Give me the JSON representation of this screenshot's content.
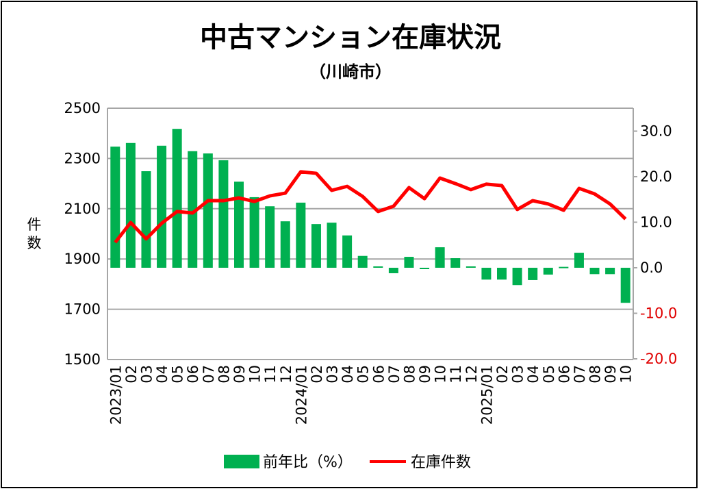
{
  "chart_data": {
    "type": "bar+line",
    "title": "中古マンション在庫状況",
    "subtitle": "（川崎市）",
    "ylabel_left": "件数",
    "ylim_left": [
      1500,
      2500
    ],
    "yticks_left": [
      "1500",
      "1700",
      "1900",
      "2100",
      "2300",
      "2500"
    ],
    "ylim_right": [
      -20,
      35
    ],
    "yticks_right": [
      "-20.0",
      "-10.0",
      "0.0",
      "10.0",
      "20.0",
      "30.0"
    ],
    "right_negative_color": "#e00000",
    "grid": true,
    "legend_position": "bottom",
    "categories": [
      "2023/01",
      "02",
      "03",
      "04",
      "05",
      "06",
      "07",
      "08",
      "09",
      "10",
      "11",
      "12",
      "2024/01",
      "02",
      "03",
      "04",
      "05",
      "06",
      "07",
      "08",
      "09",
      "10",
      "11",
      "12",
      "2025/01",
      "02",
      "03",
      "04",
      "05",
      "06",
      "07",
      "08",
      "09",
      "10"
    ],
    "series": [
      {
        "name": "前年比（%）",
        "type": "bar",
        "axis": "right",
        "color": "#00b050",
        "values": [
          26.6,
          27.4,
          21.2,
          26.8,
          30.5,
          25.6,
          25.1,
          23.6,
          18.9,
          15.5,
          13.5,
          10.2,
          14.3,
          9.6,
          9.9,
          7.1,
          2.6,
          0.3,
          -1.2,
          2.4,
          -0.3,
          4.5,
          2.1,
          0.3,
          -2.6,
          -2.6,
          -3.8,
          -2.7,
          -1.5,
          0.2,
          3.3,
          -1.4,
          -1.4,
          -7.7
        ]
      },
      {
        "name": "在庫件数",
        "type": "line",
        "axis": "left",
        "color": "#ff0000",
        "values": [
          1966,
          2045,
          1980,
          2042,
          2089,
          2083,
          2132,
          2132,
          2143,
          2129,
          2151,
          2162,
          2247,
          2241,
          2173,
          2189,
          2149,
          2089,
          2110,
          2184,
          2140,
          2222,
          2200,
          2176,
          2198,
          2192,
          2097,
          2132,
          2119,
          2094,
          2181,
          2159,
          2119,
          2059
        ]
      }
    ]
  }
}
